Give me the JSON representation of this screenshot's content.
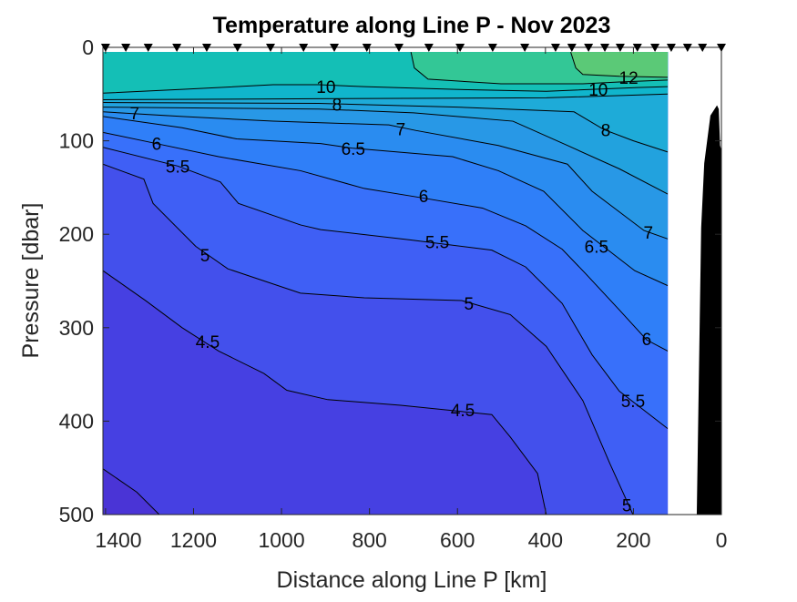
{
  "chart_data": {
    "type": "contour",
    "title": "Temperature along Line P - Nov 2023",
    "xlabel": "Distance along Line P [km]",
    "ylabel": "Pressure [dbar]",
    "xlim": [
      0,
      1406
    ],
    "x_reversed": true,
    "ylim": [
      0,
      500
    ],
    "y_reversed": true,
    "xticks": [
      0,
      200,
      400,
      600,
      800,
      1000,
      1200,
      1400
    ],
    "yticks": [
      0,
      100,
      200,
      300,
      400,
      500
    ],
    "data_extent_km": [
      122,
      1406
    ],
    "grid": false,
    "below_lowest_color": "#4a34d6",
    "contours": [
      {
        "level": 4,
        "color": "#4640e2",
        "points": [
          [
            1406,
            451
          ],
          [
            1329,
            476
          ],
          [
            1278,
            500
          ]
        ]
      },
      {
        "level": 4.5,
        "color": "#4350ec",
        "points": [
          [
            1406,
            239
          ],
          [
            1309,
            271
          ],
          [
            1226,
            300
          ],
          [
            1143,
            325
          ],
          [
            1040,
            349
          ],
          [
            988,
            367
          ],
          [
            895,
            377
          ],
          [
            729,
            383
          ],
          [
            522,
            393
          ],
          [
            480,
            417
          ],
          [
            418,
            456
          ],
          [
            398,
            500
          ]
        ]
      },
      {
        "level": 5,
        "color": "#3f5ff5",
        "points": [
          [
            1406,
            125
          ],
          [
            1313,
            141
          ],
          [
            1292,
            167
          ],
          [
            1195,
            213
          ],
          [
            1122,
            237
          ],
          [
            957,
            263
          ],
          [
            812,
            268
          ],
          [
            590,
            271
          ],
          [
            480,
            286
          ],
          [
            398,
            320
          ],
          [
            315,
            378
          ],
          [
            253,
            446
          ],
          [
            201,
            500
          ]
        ]
      },
      {
        "level": 5.5,
        "color": "#3870fa",
        "points": [
          [
            1406,
            107
          ],
          [
            1236,
            127
          ],
          [
            1139,
            144
          ],
          [
            1098,
            167
          ],
          [
            957,
            190
          ],
          [
            911,
            195
          ],
          [
            708,
            206
          ],
          [
            522,
            217
          ],
          [
            445,
            235
          ],
          [
            362,
            274
          ],
          [
            294,
            329
          ],
          [
            232,
            368
          ],
          [
            122,
            408
          ]
        ]
      },
      {
        "level": 6,
        "color": "#2f7ff8",
        "points": [
          [
            1406,
            91
          ],
          [
            1284,
            103
          ],
          [
            1143,
            117
          ],
          [
            957,
            132
          ],
          [
            812,
            151
          ],
          [
            681,
            161
          ],
          [
            543,
            172
          ],
          [
            445,
            191
          ],
          [
            362,
            216
          ],
          [
            309,
            242
          ],
          [
            232,
            281
          ],
          [
            170,
            313
          ],
          [
            122,
            325
          ]
        ]
      },
      {
        "level": 6.5,
        "color": "#2a8cf0",
        "points": [
          [
            1406,
            74
          ],
          [
            1226,
            86
          ],
          [
            1102,
            98
          ],
          [
            911,
            103
          ],
          [
            837,
            108
          ],
          [
            611,
            117
          ],
          [
            507,
            132
          ],
          [
            404,
            154
          ],
          [
            315,
            196
          ],
          [
            197,
            239
          ],
          [
            122,
            255
          ]
        ]
      },
      {
        "level": 7,
        "color": "#2898e6",
        "points": [
          [
            1406,
            69
          ],
          [
            1226,
            74
          ],
          [
            1019,
            79
          ],
          [
            756,
            83
          ],
          [
            694,
            89
          ],
          [
            507,
            105
          ],
          [
            350,
            125
          ],
          [
            294,
            154
          ],
          [
            176,
            196
          ],
          [
            122,
            205
          ]
        ]
      },
      {
        "level": 7.5,
        "color": "#22a2de",
        "points": [
          [
            1406,
            64
          ],
          [
            915,
            66
          ],
          [
            700,
            70
          ],
          [
            474,
            79
          ],
          [
            350,
            105
          ],
          [
            232,
            130
          ],
          [
            122,
            157
          ]
        ]
      },
      {
        "level": 8,
        "color": "#1eabd8",
        "points": [
          [
            1406,
            59
          ],
          [
            915,
            60
          ],
          [
            600,
            64
          ],
          [
            335,
            69
          ],
          [
            267,
            88
          ],
          [
            200,
            100
          ],
          [
            122,
            112
          ]
        ]
      },
      {
        "level": 9,
        "color": "#10b5cc",
        "points": [
          [
            1406,
            56
          ],
          [
            915,
            55
          ],
          [
            398,
            54
          ],
          [
            122,
            50
          ]
        ]
      },
      {
        "level": 10,
        "color": "#14bfb6",
        "points": [
          [
            1406,
            49
          ],
          [
            1226,
            45
          ],
          [
            1019,
            40
          ],
          [
            915,
            40
          ],
          [
            812,
            42
          ],
          [
            605,
            45
          ],
          [
            398,
            47
          ],
          [
            191,
            43
          ],
          [
            122,
            42
          ]
        ]
      },
      {
        "level": 11,
        "color": "#33c796",
        "points": [
          [
            708,
            0
          ],
          [
            698,
            22
          ],
          [
            667,
            34
          ],
          [
            501,
            39
          ],
          [
            315,
            39
          ],
          [
            232,
            37
          ],
          [
            122,
            35
          ]
        ]
      },
      {
        "level": 12,
        "color": "#5bc977",
        "points": [
          [
            346,
            0
          ],
          [
            331,
            22
          ],
          [
            315,
            29
          ],
          [
            232,
            31
          ],
          [
            122,
            32
          ]
        ]
      }
    ],
    "contour_labels": [
      {
        "text": "10",
        "x": 899,
        "y": 42
      },
      {
        "text": "8",
        "x": 874,
        "y": 61
      },
      {
        "text": "7",
        "x": 1334,
        "y": 70
      },
      {
        "text": "6",
        "x": 1284,
        "y": 103
      },
      {
        "text": "5.5",
        "x": 1236,
        "y": 127
      },
      {
        "text": "5",
        "x": 1174,
        "y": 222
      },
      {
        "text": "4.5",
        "x": 1168,
        "y": 315
      },
      {
        "text": "12",
        "x": 211,
        "y": 32
      },
      {
        "text": "10",
        "x": 280,
        "y": 45
      },
      {
        "text": "8",
        "x": 263,
        "y": 88
      },
      {
        "text": "7",
        "x": 729,
        "y": 87
      },
      {
        "text": "6.5",
        "x": 837,
        "y": 108
      },
      {
        "text": "6",
        "x": 677,
        "y": 159
      },
      {
        "text": "5.5",
        "x": 646,
        "y": 208
      },
      {
        "text": "5",
        "x": 574,
        "y": 274
      },
      {
        "text": "4.5",
        "x": 588,
        "y": 388
      },
      {
        "text": "7",
        "x": 166,
        "y": 198
      },
      {
        "text": "6.5",
        "x": 284,
        "y": 213
      },
      {
        "text": "6",
        "x": 170,
        "y": 312
      },
      {
        "text": "5.5",
        "x": 201,
        "y": 378
      },
      {
        "text": "5",
        "x": 215,
        "y": 490
      }
    ],
    "stations_km": [
      1400,
      1354,
      1303,
      1238,
      1170,
      1100,
      1025,
      950,
      880,
      806,
      733,
      665,
      594,
      520,
      447,
      377,
      340,
      302,
      265,
      230,
      191,
      151,
      114,
      77,
      43,
      0
    ],
    "bathymetry": [
      [
        56,
        500
      ],
      [
        46,
        193
      ],
      [
        39,
        124
      ],
      [
        25,
        73
      ],
      [
        10,
        62
      ],
      [
        6,
        66
      ],
      [
        3,
        105
      ],
      [
        0,
        110
      ],
      [
        0,
        500
      ]
    ],
    "bathymetry_color": "#000000"
  }
}
